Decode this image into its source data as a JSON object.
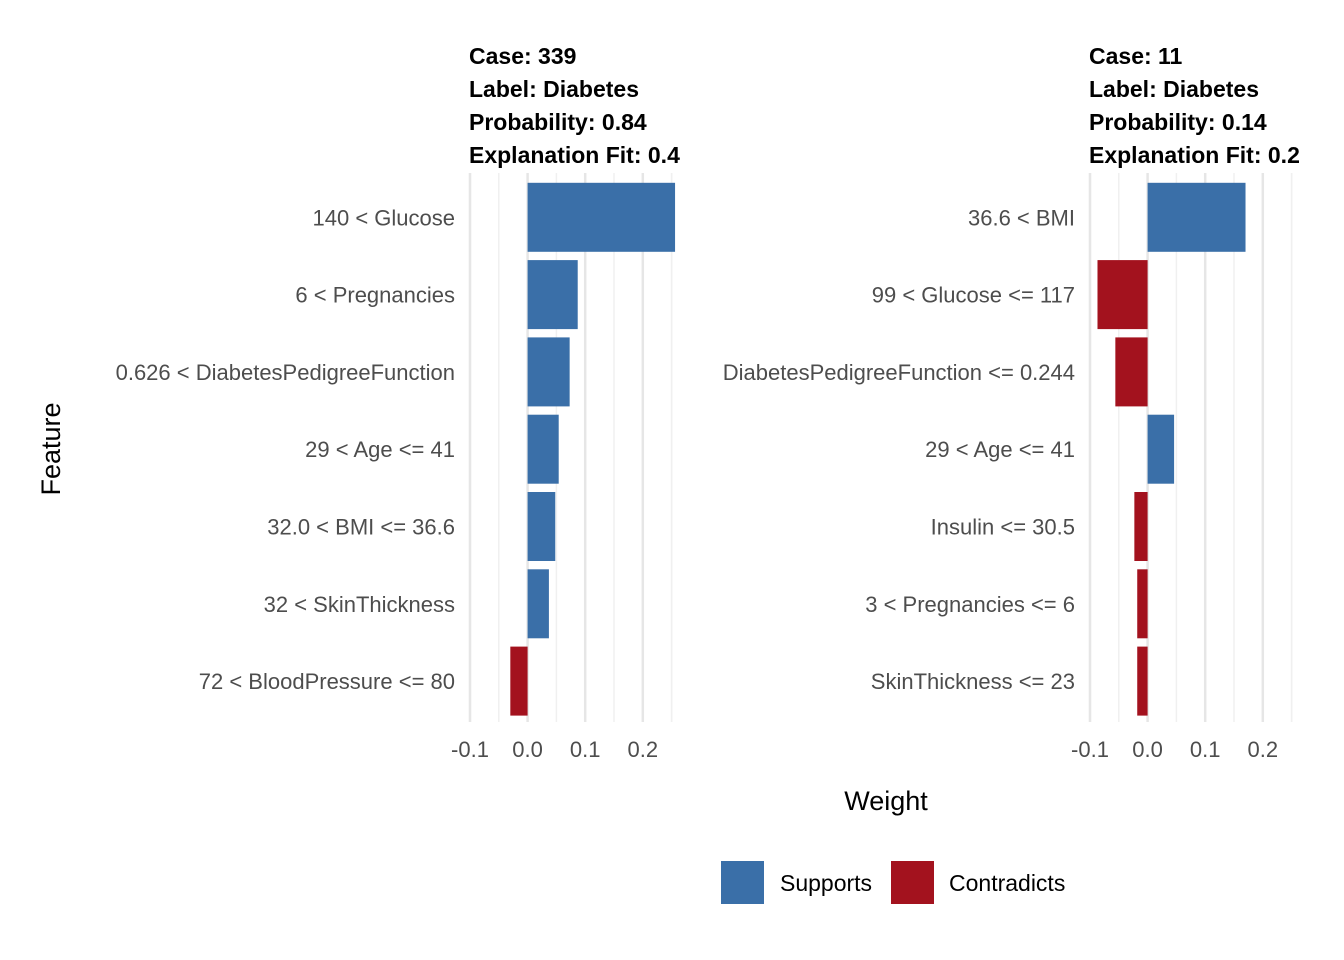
{
  "chart_data": {
    "type": "bar",
    "orientation": "horizontal",
    "xlabel": "Weight",
    "ylabel": "Feature",
    "xlim": [
      -0.1,
      0.25
    ],
    "ticks": [
      "-0.1",
      "0.0",
      "0.1",
      "0.2"
    ],
    "tick_values": [
      -0.1,
      0.0,
      0.1,
      0.2
    ],
    "legend": {
      "position": "bottom",
      "items": [
        {
          "label": "Supports",
          "color": "#3a6fa8"
        },
        {
          "label": "Contradicts",
          "color": "#a3121e"
        }
      ]
    },
    "panels": [
      {
        "title_lines": [
          "Case: 339",
          "Label: Diabetes",
          "Probability: 0.84",
          "Explanation Fit: 0.4"
        ],
        "features": [
          {
            "label": "140 < Glucose",
            "weight": 0.256,
            "type": "Supports"
          },
          {
            "label": "6 < Pregnancies",
            "weight": 0.087,
            "type": "Supports"
          },
          {
            "label": "0.626 < DiabetesPedigreeFunction",
            "weight": 0.073,
            "type": "Supports"
          },
          {
            "label": "29 < Age <= 41",
            "weight": 0.054,
            "type": "Supports"
          },
          {
            "label": "32.0 < BMI <= 36.6",
            "weight": 0.048,
            "type": "Supports"
          },
          {
            "label": "32 < SkinThickness",
            "weight": 0.037,
            "type": "Supports"
          },
          {
            "label": "72 < BloodPressure <= 80",
            "weight": -0.03,
            "type": "Contradicts"
          }
        ]
      },
      {
        "title_lines": [
          "Case: 11",
          "Label: Diabetes",
          "Probability: 0.14",
          "Explanation Fit: 0.2"
        ],
        "features": [
          {
            "label": "36.6 < BMI",
            "weight": 0.17,
            "type": "Supports"
          },
          {
            "label": "99 < Glucose <= 117",
            "weight": -0.087,
            "type": "Contradicts"
          },
          {
            "label": "DiabetesPedigreeFunction <= 0.244",
            "weight": -0.056,
            "type": "Contradicts"
          },
          {
            "label": "29 < Age <= 41",
            "weight": 0.046,
            "type": "Supports"
          },
          {
            "label": "Insulin <= 30.5",
            "weight": -0.023,
            "type": "Contradicts"
          },
          {
            "label": "3 < Pregnancies <= 6",
            "weight": -0.018,
            "type": "Contradicts"
          },
          {
            "label": "SkinThickness <= 23",
            "weight": -0.018,
            "type": "Contradicts"
          }
        ]
      }
    ]
  }
}
